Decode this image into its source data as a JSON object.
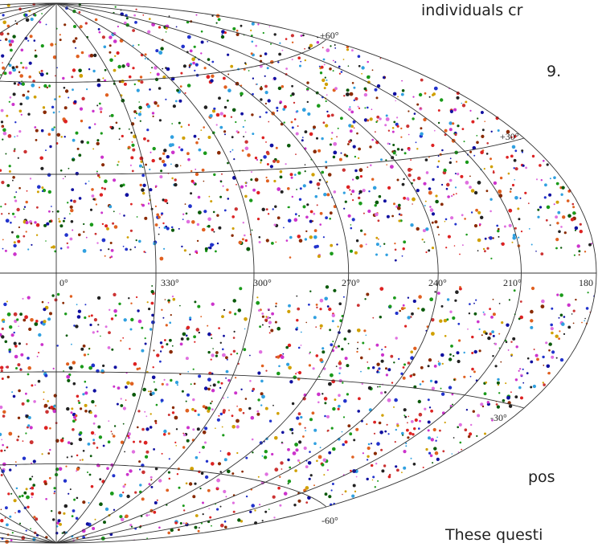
{
  "sky_map": {
    "meridian_labels": [
      "0°",
      "330°",
      "300°",
      "270°",
      "240°",
      "210°",
      "180"
    ],
    "parallel_labels": [
      "+60°",
      "+30°",
      "-30°",
      "-60°"
    ]
  },
  "document_text": {
    "line_1": "individuals cr",
    "line_2": "9.",
    "line_3": "pos",
    "line_4": "These questi"
  }
}
